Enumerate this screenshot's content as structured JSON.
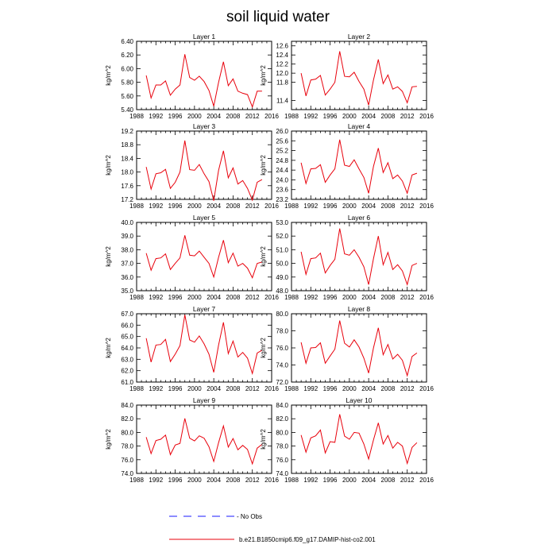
{
  "figure_title": "soil liquid water",
  "legend": {
    "no_obs_label": "- No Obs",
    "model_label": "b.e21.B1850cmip6.f09_g17.DAMIP-hist-co2.001"
  },
  "colors": {
    "model": "#e8000b",
    "no_obs": "#1a1aff",
    "axis": "#000000"
  },
  "chart_data": [
    {
      "type": "line",
      "title": "Layer 1",
      "ylabel": "kg/m^2",
      "xlim": [
        1988,
        2016
      ],
      "ylim": [
        5.4,
        6.4
      ],
      "xticks": [
        "1988",
        "1992",
        "1996",
        "2000",
        "2004",
        "2008",
        "2012",
        "2016"
      ],
      "yticks": [
        "5.40",
        "5.60",
        "5.80",
        "6.00",
        "6.20",
        "6.40"
      ],
      "x": [
        1990,
        1991,
        1992,
        1993,
        1994,
        1995,
        1996,
        1997,
        1998,
        1999,
        2000,
        2001,
        2002,
        2003,
        2004,
        2005,
        2006,
        2007,
        2008,
        2009,
        2010,
        2011,
        2012,
        2013,
        2014
      ],
      "series": [
        {
          "name": "b.e21.B1850cmip6.f09_g17.DAMIP-hist-co2.001",
          "values": [
            5.9,
            5.57,
            5.76,
            5.76,
            5.82,
            5.61,
            5.7,
            5.76,
            6.21,
            5.87,
            5.83,
            5.89,
            5.81,
            5.68,
            5.45,
            5.8,
            6.1,
            5.75,
            5.85,
            5.67,
            5.64,
            5.62,
            5.44,
            5.67,
            5.67
          ]
        }
      ]
    },
    {
      "type": "line",
      "title": "Layer 2",
      "ylabel": "kg/m^2",
      "xlim": [
        1988,
        2016
      ],
      "ylim": [
        11.2,
        12.7
      ],
      "xticks": [
        "1988",
        "1992",
        "1996",
        "2000",
        "2004",
        "2008",
        "2012",
        "2016"
      ],
      "yticks": [
        "11.4",
        "11.8",
        "12.0",
        "12.2",
        "12.4",
        "12.6"
      ],
      "x": [
        1990,
        1991,
        1992,
        1993,
        1994,
        1995,
        1996,
        1997,
        1998,
        1999,
        2000,
        2001,
        2002,
        2003,
        2004,
        2005,
        2006,
        2007,
        2008,
        2009,
        2010,
        2011,
        2012,
        2013,
        2014
      ],
      "series": [
        {
          "name": "b.e21.B1850cmip6.f09_g17.DAMIP-hist-co2.001",
          "values": [
            12.0,
            11.5,
            11.85,
            11.87,
            11.95,
            11.52,
            11.65,
            11.8,
            12.48,
            11.93,
            11.92,
            12.02,
            11.82,
            11.65,
            11.3,
            11.85,
            12.3,
            11.77,
            11.96,
            11.65,
            11.7,
            11.6,
            11.35,
            11.7,
            11.71
          ]
        }
      ]
    },
    {
      "type": "line",
      "title": "Layer 3",
      "ylabel": "kg/m^2",
      "xlim": [
        1988,
        2016
      ],
      "ylim": [
        17.2,
        19.2
      ],
      "xticks": [
        "1988",
        "1992",
        "1996",
        "2000",
        "2004",
        "2008",
        "2012",
        "2016"
      ],
      "yticks": [
        "17.2",
        "17.6",
        "18.0",
        "18.4",
        "18.8",
        "19.2"
      ],
      "x": [
        1990,
        1991,
        1992,
        1993,
        1994,
        1995,
        1996,
        1997,
        1998,
        1999,
        2000,
        2001,
        2002,
        2003,
        2004,
        2005,
        2006,
        2007,
        2008,
        2009,
        2010,
        2011,
        2012,
        2013,
        2014
      ],
      "series": [
        {
          "name": "b.e21.B1850cmip6.f09_g17.DAMIP-hist-co2.001",
          "values": [
            18.15,
            17.5,
            17.95,
            17.98,
            18.08,
            17.52,
            17.7,
            18.0,
            18.92,
            18.07,
            18.05,
            18.22,
            17.95,
            17.72,
            17.16,
            18.05,
            18.62,
            17.83,
            18.12,
            17.65,
            17.75,
            17.52,
            17.18,
            17.7,
            17.78
          ]
        }
      ]
    },
    {
      "type": "line",
      "title": "Layer 4",
      "ylabel": "kg/m^2",
      "xlim": [
        1988,
        2016
      ],
      "ylim": [
        23.2,
        26.0
      ],
      "xticks": [
        "1988",
        "1992",
        "1996",
        "2000",
        "2004",
        "2008",
        "2012",
        "2016"
      ],
      "yticks": [
        "23.2",
        "23.6",
        "24.0",
        "24.4",
        "24.8",
        "25.2",
        "25.6",
        "26.0"
      ],
      "x": [
        1990,
        1991,
        1992,
        1993,
        1994,
        1995,
        1996,
        1997,
        1998,
        1999,
        2000,
        2001,
        2002,
        2003,
        2004,
        2005,
        2006,
        2007,
        2008,
        2009,
        2010,
        2011,
        2012,
        2013,
        2014
      ],
      "series": [
        {
          "name": "b.e21.B1850cmip6.f09_g17.DAMIP-hist-co2.001",
          "values": [
            24.7,
            23.85,
            24.45,
            24.47,
            24.62,
            23.9,
            24.2,
            24.45,
            25.65,
            24.6,
            24.55,
            24.82,
            24.45,
            24.1,
            23.45,
            24.55,
            25.3,
            24.3,
            24.7,
            24.05,
            24.2,
            23.95,
            23.45,
            24.2,
            24.27
          ]
        }
      ]
    },
    {
      "type": "line",
      "title": "Layer 5",
      "ylabel": "kg/m^2",
      "xlim": [
        1988,
        2016
      ],
      "ylim": [
        35.0,
        40.0
      ],
      "xticks": [
        "1988",
        "1992",
        "1996",
        "2000",
        "2004",
        "2008",
        "2012",
        "2016"
      ],
      "yticks": [
        "35.0",
        "36.0",
        "37.0",
        "38.0",
        "39.0",
        "40.0"
      ],
      "x": [
        1990,
        1991,
        1992,
        1993,
        1994,
        1995,
        1996,
        1997,
        1998,
        1999,
        2000,
        2001,
        2002,
        2003,
        2004,
        2005,
        2006,
        2007,
        2008,
        2009,
        2010,
        2011,
        2012,
        2013,
        2014
      ],
      "series": [
        {
          "name": "b.e21.B1850cmip6.f09_g17.DAMIP-hist-co2.001",
          "values": [
            37.75,
            36.5,
            37.35,
            37.4,
            37.7,
            36.55,
            37.0,
            37.4,
            39.05,
            37.6,
            37.55,
            37.9,
            37.45,
            37.0,
            36.0,
            37.45,
            38.7,
            37.05,
            37.75,
            36.8,
            37.0,
            36.65,
            35.95,
            37.0,
            37.1
          ]
        }
      ]
    },
    {
      "type": "line",
      "title": "Layer 6",
      "ylabel": "kg/m^2",
      "xlim": [
        1988,
        2016
      ],
      "ylim": [
        48.0,
        53.0
      ],
      "xticks": [
        "1988",
        "1992",
        "1996",
        "2000",
        "2004",
        "2008",
        "2012",
        "2016"
      ],
      "yticks": [
        "48.0",
        "49.0",
        "50.0",
        "51.0",
        "52.0",
        "53.0"
      ],
      "x": [
        1990,
        1991,
        1992,
        1993,
        1994,
        1995,
        1996,
        1997,
        1998,
        1999,
        2000,
        2001,
        2002,
        2003,
        2004,
        2005,
        2006,
        2007,
        2008,
        2009,
        2010,
        2011,
        2012,
        2013,
        2014
      ],
      "series": [
        {
          "name": "b.e21.B1850cmip6.f09_g17.DAMIP-hist-co2.001",
          "values": [
            50.85,
            49.2,
            50.35,
            50.4,
            50.75,
            49.3,
            49.85,
            50.3,
            52.55,
            50.7,
            50.6,
            51.0,
            50.45,
            49.75,
            48.45,
            50.35,
            52.0,
            49.9,
            50.8,
            49.55,
            49.9,
            49.45,
            48.45,
            49.85,
            50.0
          ]
        }
      ]
    },
    {
      "type": "line",
      "title": "Layer 7",
      "ylabel": "kg/m^2",
      "xlim": [
        1988,
        2016
      ],
      "ylim": [
        61.0,
        67.0
      ],
      "xticks": [
        "1988",
        "1992",
        "1996",
        "2000",
        "2004",
        "2008",
        "2012",
        "2016"
      ],
      "yticks": [
        "61.0",
        "62.0",
        "63.0",
        "64.0",
        "65.0",
        "66.0",
        "67.0"
      ],
      "x": [
        1990,
        1991,
        1992,
        1993,
        1994,
        1995,
        1996,
        1997,
        1998,
        1999,
        2000,
        2001,
        2002,
        2003,
        2004,
        2005,
        2006,
        2007,
        2008,
        2009,
        2010,
        2011,
        2012,
        2013,
        2014
      ],
      "series": [
        {
          "name": "b.e21.B1850cmip6.f09_g17.DAMIP-hist-co2.001",
          "values": [
            64.85,
            62.75,
            64.25,
            64.3,
            64.75,
            62.8,
            63.45,
            64.2,
            66.9,
            64.7,
            64.5,
            65.05,
            64.35,
            63.45,
            61.85,
            64.25,
            66.25,
            63.5,
            64.6,
            63.2,
            63.6,
            63.1,
            61.75,
            63.55,
            63.8
          ]
        }
      ]
    },
    {
      "type": "line",
      "title": "Layer 8",
      "ylabel": "kg/m^2",
      "xlim": [
        1988,
        2016
      ],
      "ylim": [
        72.0,
        80.0
      ],
      "xticks": [
        "1988",
        "1992",
        "1996",
        "2000",
        "2004",
        "2008",
        "2012",
        "2016"
      ],
      "yticks": [
        "72.0",
        "74.0",
        "76.0",
        "78.0",
        "80.0"
      ],
      "x": [
        1990,
        1991,
        1992,
        1993,
        1994,
        1995,
        1996,
        1997,
        1998,
        1999,
        2000,
        2001,
        2002,
        2003,
        2004,
        2005,
        2006,
        2007,
        2008,
        2009,
        2010,
        2011,
        2012,
        2013,
        2014
      ],
      "series": [
        {
          "name": "b.e21.B1850cmip6.f09_g17.DAMIP-hist-co2.001",
          "values": [
            76.65,
            74.2,
            76.0,
            76.05,
            76.6,
            74.2,
            75.05,
            75.85,
            79.2,
            76.55,
            76.1,
            76.95,
            76.1,
            74.8,
            73.05,
            76.0,
            78.35,
            75.2,
            76.4,
            74.7,
            75.25,
            74.55,
            72.75,
            75.0,
            75.4
          ]
        }
      ]
    },
    {
      "type": "line",
      "title": "Layer 9",
      "ylabel": "kg/m^2",
      "xlim": [
        1988,
        2016
      ],
      "ylim": [
        74.0,
        84.0
      ],
      "xticks": [
        "1988",
        "1992",
        "1996",
        "2000",
        "2004",
        "2008",
        "2012",
        "2016"
      ],
      "yticks": [
        "74.0",
        "76.0",
        "78.0",
        "80.0",
        "82.0",
        "84.0"
      ],
      "x": [
        1990,
        1991,
        1992,
        1993,
        1994,
        1995,
        1996,
        1997,
        1998,
        1999,
        2000,
        2001,
        2002,
        2003,
        2004,
        2005,
        2006,
        2007,
        2008,
        2009,
        2010,
        2011,
        2012,
        2013,
        2014
      ],
      "series": [
        {
          "name": "b.e21.B1850cmip6.f09_g17.DAMIP-hist-co2.001",
          "values": [
            79.3,
            76.9,
            78.8,
            79.0,
            79.6,
            76.75,
            78.15,
            78.4,
            82.05,
            79.15,
            78.75,
            79.5,
            79.15,
            77.9,
            75.75,
            78.5,
            80.95,
            77.85,
            79.1,
            77.45,
            78.1,
            77.5,
            75.4,
            77.7,
            78.25
          ]
        }
      ]
    },
    {
      "type": "line",
      "title": "Layer 10",
      "ylabel": "kg/m^2",
      "xlim": [
        1988,
        2016
      ],
      "ylim": [
        74.0,
        84.0
      ],
      "xticks": [
        "1988",
        "1992",
        "1996",
        "2000",
        "2004",
        "2008",
        "2012",
        "2016"
      ],
      "yticks": [
        "74.0",
        "76.0",
        "78.0",
        "80.0",
        "82.0",
        "84.0"
      ],
      "x": [
        1990,
        1991,
        1992,
        1993,
        1994,
        1995,
        1996,
        1997,
        1998,
        1999,
        2000,
        2001,
        2002,
        2003,
        2004,
        2005,
        2006,
        2007,
        2008,
        2009,
        2010,
        2011,
        2012,
        2013,
        2014
      ],
      "series": [
        {
          "name": "b.e21.B1850cmip6.f09_g17.DAMIP-hist-co2.001",
          "values": [
            79.6,
            77.1,
            79.2,
            79.5,
            80.35,
            77.0,
            78.65,
            78.55,
            82.65,
            79.45,
            79.0,
            80.0,
            79.9,
            78.3,
            76.1,
            78.9,
            81.4,
            78.3,
            79.55,
            77.7,
            78.55,
            78.0,
            75.45,
            77.8,
            78.5
          ]
        }
      ]
    }
  ]
}
